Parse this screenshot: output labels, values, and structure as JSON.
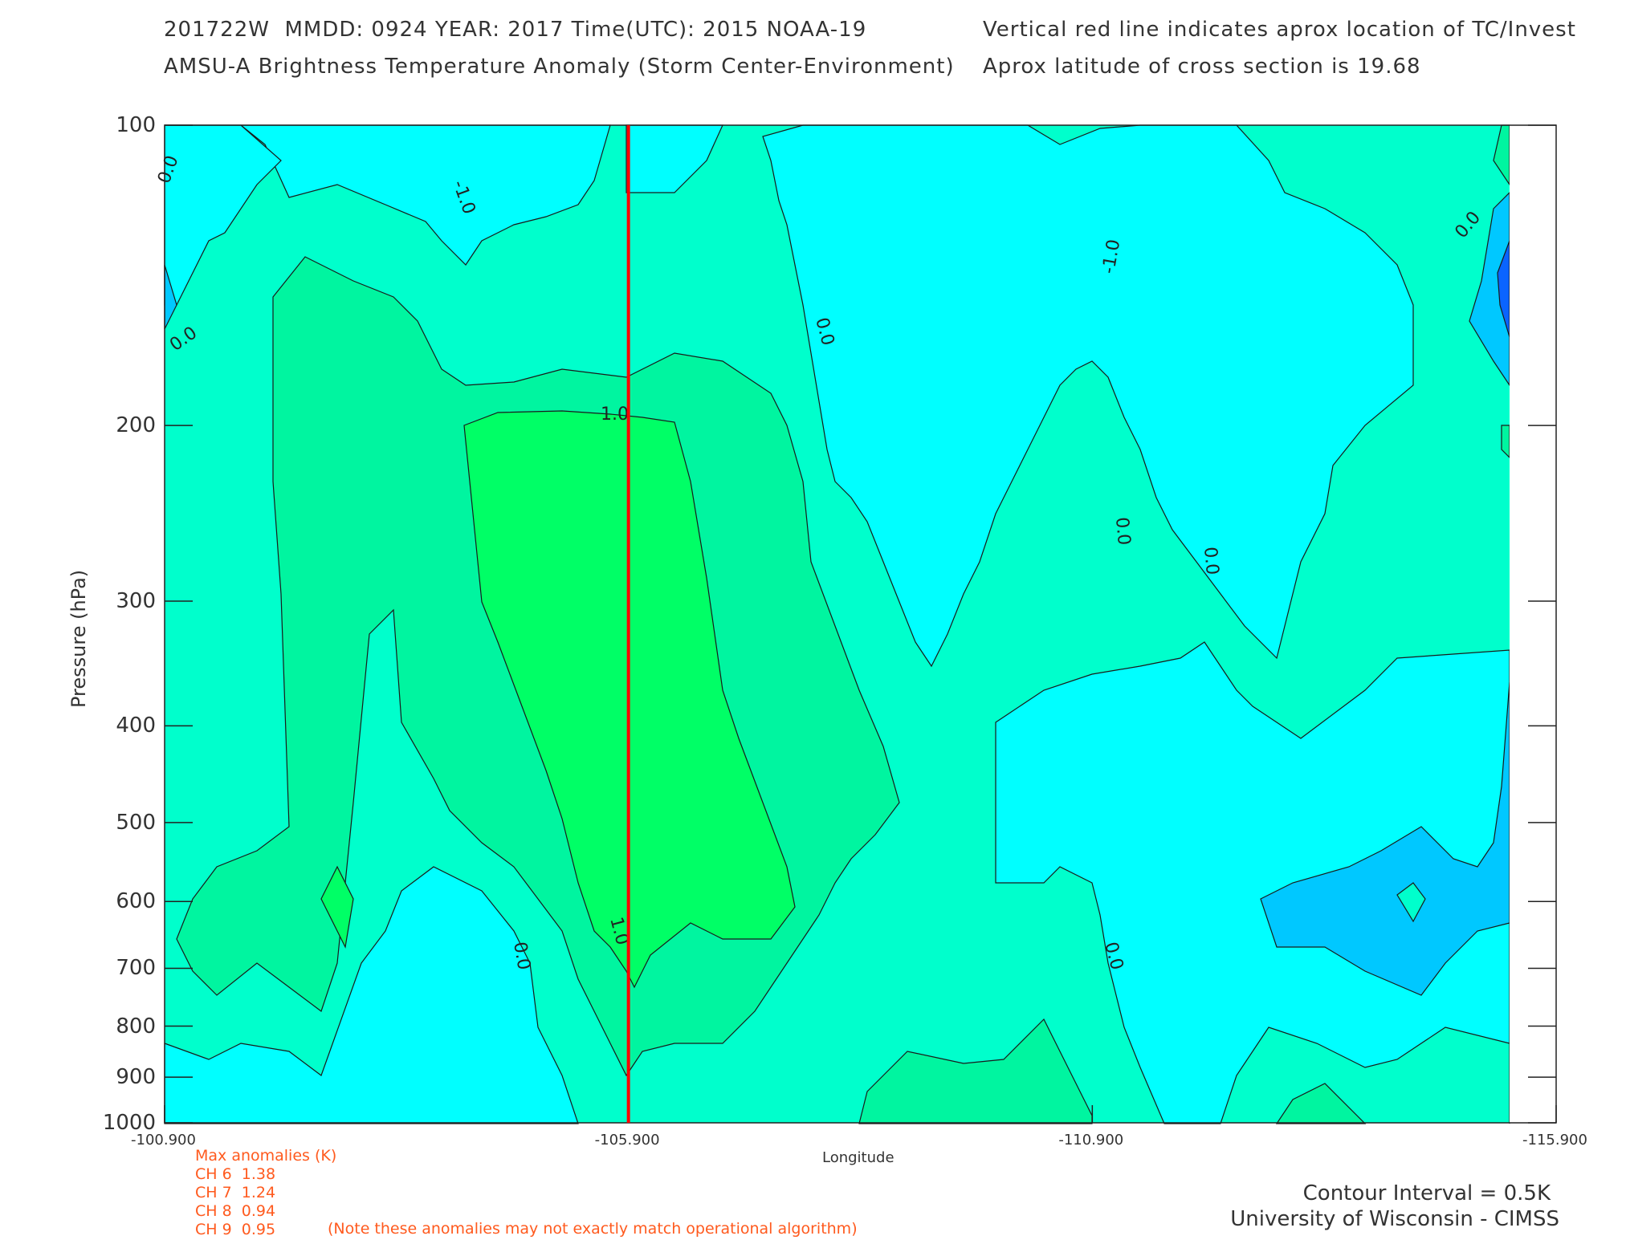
{
  "header": {
    "line1_left": "201722W  MMDD: 0924 YEAR: 2017 Time(UTC): 2015 NOAA-19",
    "line2_left": "AMSU-A Brightness Temperature Anomaly (Storm Center-Environment)",
    "line1_right": "Vertical red line indicates aprox location of TC/Invest",
    "line2_right": "Aprox latitude of cross section is 19.68"
  },
  "chart_data": {
    "type": "heatmap",
    "subtype": "filled-contour cross section",
    "xlabel": "Longitude",
    "ylabel": "Pressure (hPa)",
    "x_ticks": [
      "-100.900",
      "-105.900",
      "-110.900",
      "-115.900"
    ],
    "x_tick_values": [
      -100.9,
      -105.9,
      -110.9,
      -115.9
    ],
    "xlim": [
      -100.9,
      -115.9
    ],
    "y_ticks": [
      "100",
      "200",
      "300",
      "400",
      "500",
      "600",
      "700",
      "800",
      "900",
      "1000"
    ],
    "y_tick_values": [
      100,
      200,
      300,
      400,
      500,
      600,
      700,
      800,
      900,
      1000
    ],
    "ylim": [
      100,
      1000
    ],
    "y_scale": "log (pressure)",
    "storm_center_longitude": -105.9,
    "storm_center_line_color": "#ff0000",
    "contour_labels": [
      "-1.0",
      "0.0",
      "1.0"
    ],
    "contour_interval_K": 0.5,
    "fill_colors": {
      "below_-1.0": "#0a64ff",
      "-1.0_to_-0.5": "#00c8ff",
      "-0.5_to_0.0": "#00ffff",
      "0.0_to_0.5": "#00ffcc",
      "0.5_to_1.0": "#00f5a0",
      "above_1.0": "#00ff66"
    }
  },
  "max_anomalies": {
    "title": "Max anomalies (K)",
    "rows": [
      {
        "label": "CH 6",
        "value": "1.38"
      },
      {
        "label": "CH 7",
        "value": "1.24"
      },
      {
        "label": "CH 8",
        "value": "0.94"
      },
      {
        "label": "CH 9",
        "value": "0.95"
      }
    ],
    "note": "(Note these anomalies may not exactly match operational algorithm)"
  },
  "footer": {
    "contour_interval": "Contour Interval = 0.5K",
    "credit": "University of Wisconsin - CIMSS"
  }
}
